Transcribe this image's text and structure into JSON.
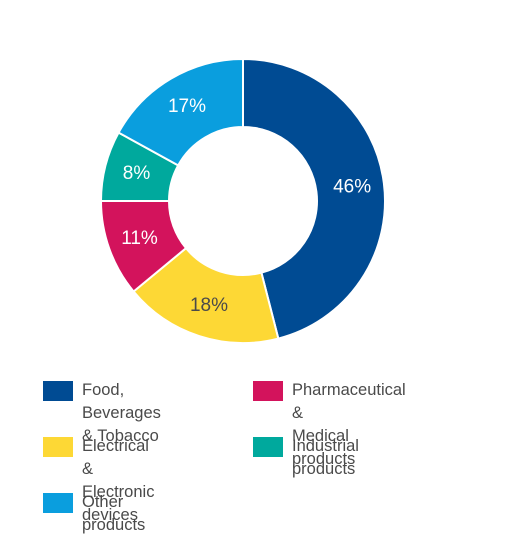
{
  "chart_data": {
    "type": "pie",
    "style": "donut",
    "title": "",
    "slices": [
      {
        "label": "Food, Beverages\n& Tobacco",
        "value": 46,
        "value_label": "46%",
        "color": "#004b93",
        "label_color": "#ffffff"
      },
      {
        "label": "Electrical &\nElectronic devices",
        "value": 18,
        "value_label": "18%",
        "color": "#fdd835",
        "label_color": "#4a4a4a"
      },
      {
        "label": "Pharmaceutical &\nMedical products",
        "value": 11,
        "value_label": "11%",
        "color": "#d3135c",
        "label_color": "#ffffff"
      },
      {
        "label": "Industrial products",
        "value": 8,
        "value_label": "8%",
        "color": "#00a99d",
        "label_color": "#ffffff"
      },
      {
        "label": "Other products",
        "value": 17,
        "value_label": "17%",
        "color": "#0a9ede",
        "label_color": "#ffffff"
      }
    ],
    "start": "12 o'clock",
    "direction": "clockwise",
    "legend_placement": "bottom"
  },
  "legend": [
    {
      "label": "Food, Beverages\n& Tobacco",
      "color": "#004b93"
    },
    {
      "label": "Pharmaceutical &\nMedical products",
      "color": "#d3135c"
    },
    {
      "label": "Electrical &\nElectronic devices",
      "color": "#fdd835"
    },
    {
      "label": "Industrial products",
      "color": "#00a99d"
    },
    {
      "label": "Other products",
      "color": "#0a9ede"
    }
  ]
}
